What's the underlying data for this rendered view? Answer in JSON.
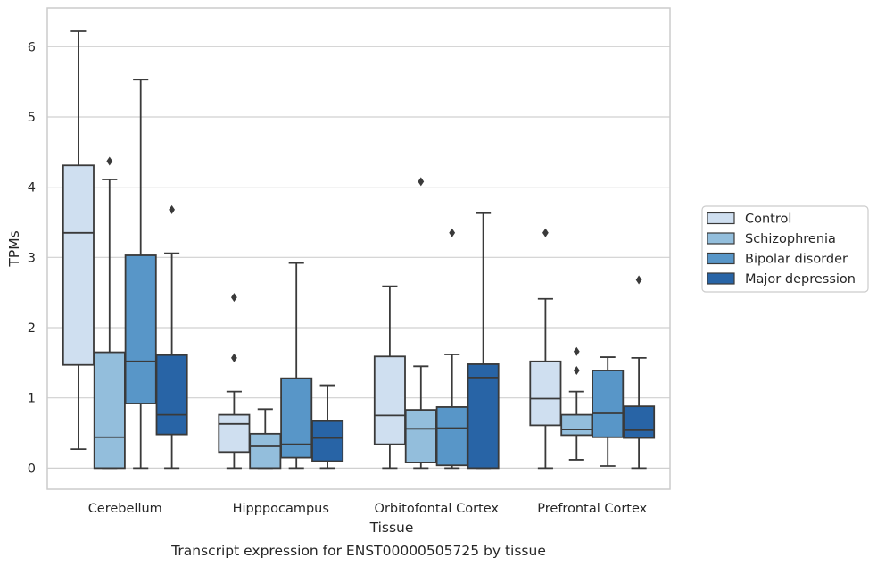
{
  "chart_data": {
    "type": "box",
    "title": "",
    "caption": "Transcript expression for ENST00000505725 by tissue",
    "xlabel": "Tissue",
    "ylabel": "TPMs",
    "ylim": [
      -0.3,
      6.55
    ],
    "yticks": [
      0,
      1,
      2,
      3,
      4,
      5,
      6
    ],
    "grid": "horizontal",
    "legend_position": "right",
    "categories": [
      "Cerebellum",
      "Hipppocampus",
      "Orbitofontal Cortex",
      "Prefrontal Cortex"
    ],
    "series": [
      {
        "name": "Control",
        "color": "#cfdff0",
        "boxes": [
          {
            "min": 0.27,
            "q1": 1.47,
            "median": 3.35,
            "q3": 4.31,
            "max": 6.22,
            "outliers": []
          },
          {
            "min": 0.0,
            "q1": 0.23,
            "median": 0.63,
            "q3": 0.76,
            "max": 1.09,
            "outliers": [
              1.57,
              2.43
            ]
          },
          {
            "min": 0.0,
            "q1": 0.34,
            "median": 0.75,
            "q3": 1.59,
            "max": 2.59,
            "outliers": []
          },
          {
            "min": 0.0,
            "q1": 0.61,
            "median": 0.99,
            "q3": 1.52,
            "max": 2.41,
            "outliers": [
              3.35
            ]
          }
        ]
      },
      {
        "name": "Schizophrenia",
        "color": "#93bedc",
        "boxes": [
          {
            "min": 0.0,
            "q1": 0.0,
            "median": 0.44,
            "q3": 1.65,
            "max": 4.11,
            "outliers": [
              4.37
            ]
          },
          {
            "min": 0.0,
            "q1": 0.0,
            "median": 0.31,
            "q3": 0.49,
            "max": 0.84,
            "outliers": []
          },
          {
            "min": 0.0,
            "q1": 0.08,
            "median": 0.56,
            "q3": 0.83,
            "max": 1.45,
            "outliers": [
              4.08
            ]
          },
          {
            "min": 0.12,
            "q1": 0.47,
            "median": 0.55,
            "q3": 0.76,
            "max": 1.09,
            "outliers": [
              1.39,
              1.66
            ]
          }
        ]
      },
      {
        "name": "Bipolar disorder",
        "color": "#5896c8",
        "boxes": [
          {
            "min": 0.0,
            "q1": 0.92,
            "median": 1.52,
            "q3": 3.03,
            "max": 5.53,
            "outliers": []
          },
          {
            "min": 0.0,
            "q1": 0.15,
            "median": 0.34,
            "q3": 1.28,
            "max": 2.92,
            "outliers": []
          },
          {
            "min": 0.0,
            "q1": 0.04,
            "median": 0.57,
            "q3": 0.87,
            "max": 1.62,
            "outliers": [
              3.35
            ]
          },
          {
            "min": 0.03,
            "q1": 0.44,
            "median": 0.78,
            "q3": 1.39,
            "max": 1.58,
            "outliers": []
          }
        ]
      },
      {
        "name": "Major depression",
        "color": "#2864a6",
        "boxes": [
          {
            "min": 0.0,
            "q1": 0.48,
            "median": 0.76,
            "q3": 1.61,
            "max": 3.06,
            "outliers": [
              3.68
            ]
          },
          {
            "min": 0.0,
            "q1": 0.1,
            "median": 0.43,
            "q3": 0.67,
            "max": 1.18,
            "outliers": []
          },
          {
            "min": 0.0,
            "q1": 0.0,
            "median": 1.29,
            "q3": 1.48,
            "max": 3.63,
            "outliers": []
          },
          {
            "min": 0.0,
            "q1": 0.43,
            "median": 0.54,
            "q3": 0.88,
            "max": 1.57,
            "outliers": [
              2.68
            ]
          }
        ]
      }
    ]
  },
  "colors": {
    "grid": "#d0d0d0",
    "frame": "#cccccc",
    "line": "#3a3a3a",
    "text": "#262626"
  }
}
